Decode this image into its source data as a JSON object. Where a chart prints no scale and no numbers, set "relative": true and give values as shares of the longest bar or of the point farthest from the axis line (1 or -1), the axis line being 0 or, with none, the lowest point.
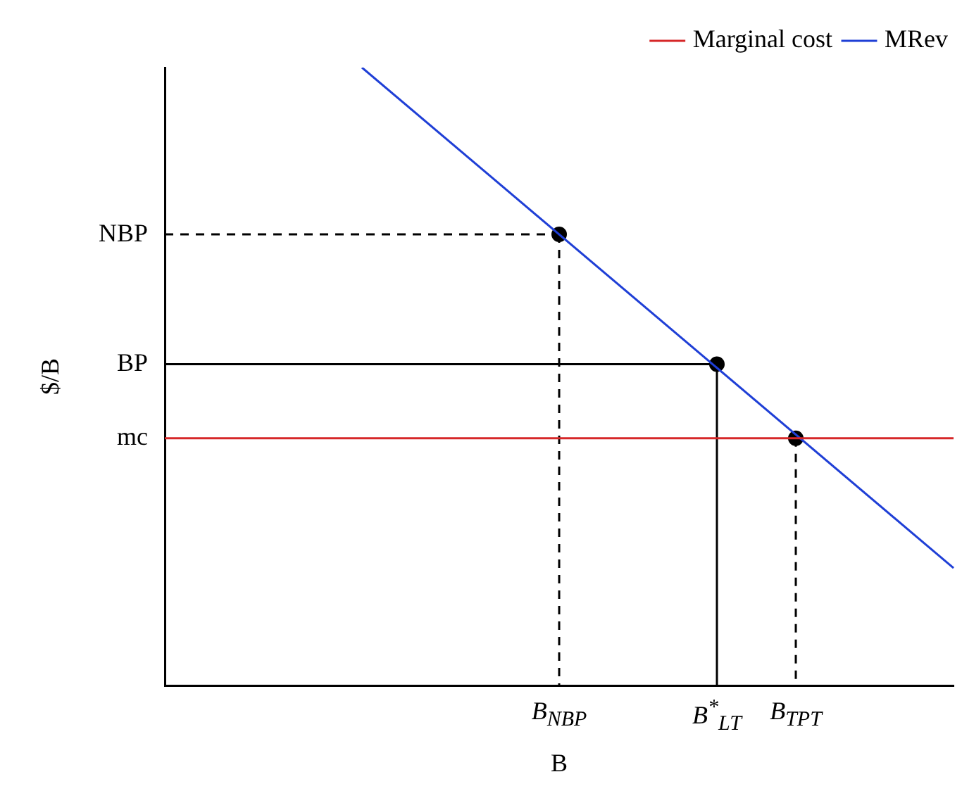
{
  "chart_data": {
    "type": "line",
    "relative": true,
    "xlabel": "B",
    "ylabel": "$/B",
    "grid": false,
    "legend": "top right",
    "categories": [
      null,
      null,
      null,
      null,
      null,
      null,
      null,
      null,
      null,
      null,
      "B$_{NBP}$",
      null,
      null,
      null,
      "B$^{*}$$_{LT}$",
      null,
      "B$_{TPT}$",
      null,
      null,
      null,
      null
    ],
    "annotations": [
      "NBP",
      "BP",
      "mc"
    ],
    "series": [
      {
        "name": "Marginal cost",
        "color": "#d62728",
        "values": [
          0.4,
          0.4,
          0.4,
          0.4,
          0.4,
          0.4,
          0.4,
          0.4,
          0.4,
          0.4,
          0.4,
          0.4,
          0.4,
          0.4,
          0.4,
          0.4,
          0.4,
          0.4,
          0.4,
          0.4,
          0.4
        ]
      },
      {
        "name": "MRev",
        "color": "#1f3fd6",
        "values": [
          null,
          null,
          null,
          null,
          null,
          1,
          null,
          null,
          null,
          null,
          null,
          null,
          null,
          null,
          null,
          null,
          null,
          null,
          null,
          null,
          0.19
        ]
      },
      {
        "color": "#000000",
        "line_style": "dashed",
        "values": [
          0.73,
          null,
          null,
          null,
          null,
          null,
          null,
          null,
          null,
          null,
          0.73,
          null,
          null,
          null,
          null,
          null,
          null,
          null,
          null,
          null,
          null
        ]
      },
      {
        "color": "#000000",
        "line_style": "dashed",
        "x": [
          "B$_{NBP}$",
          "B$_{NBP}$"
        ],
        "values": [
          0.73,
          0
        ]
      },
      {
        "color": "#000000",
        "line_style": "solid",
        "values": [
          0.52,
          null,
          null,
          null,
          null,
          null,
          null,
          null,
          null,
          null,
          null,
          null,
          null,
          null,
          0.52,
          null,
          null,
          null,
          null,
          null,
          null
        ]
      },
      {
        "color": "#000000",
        "line_style": "solid",
        "x": [
          "B$^{*}$$_{LT}$",
          "B$^{*}$$_{LT}$"
        ],
        "values": [
          0.52,
          0
        ]
      },
      {
        "color": "#000000",
        "line_style": "dashed",
        "x": [
          "B$_{TPT}$",
          "B$_{TPT}$"
        ],
        "values": [
          0.4,
          0
        ]
      },
      {
        "type": "scatter",
        "color": "#000000",
        "marker": "circle",
        "x": [
          "B$_{NBP}$",
          "B$^{*}$$_{LT}$",
          "B$_{TPT}$"
        ],
        "values": [
          0.73,
          0.52,
          0.4
        ]
      }
    ]
  }
}
